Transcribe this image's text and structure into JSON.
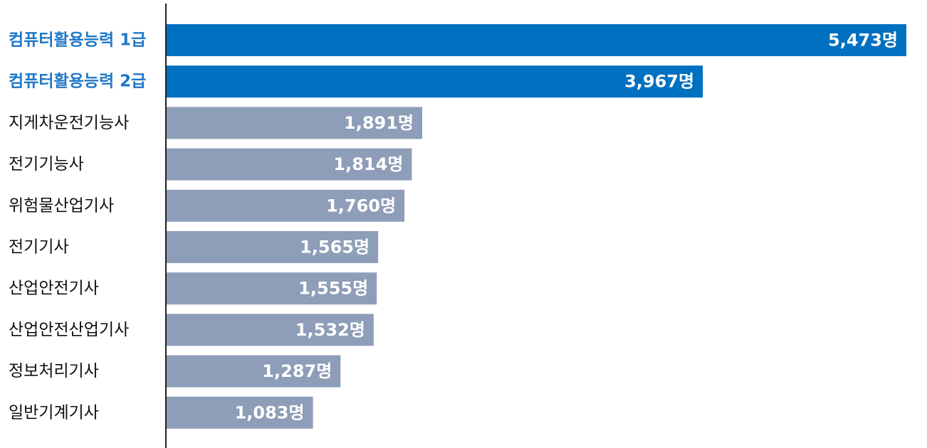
{
  "chart_data": {
    "type": "bar",
    "orientation": "horizontal",
    "categories": [
      "컴퓨터활용능력 1급",
      "컴퓨터활용능력 2급",
      "지게차운전기능사",
      "전기기능사",
      "위험물산업기사",
      "전기기사",
      "산업안전기사",
      "산업안전산업기사",
      "정보처리기사",
      "일반기계기사"
    ],
    "values": [
      5473,
      3967,
      1891,
      1814,
      1760,
      1565,
      1555,
      1532,
      1287,
      1083
    ],
    "value_labels": [
      "5,473명",
      "3,967명",
      "1,891명",
      "1,814명",
      "1,760명",
      "1,565명",
      "1,555명",
      "1,532명",
      "1,287명",
      "1,083명"
    ],
    "highlighted": [
      true,
      true,
      false,
      false,
      false,
      false,
      false,
      false,
      false,
      false
    ],
    "xlim": [
      0,
      5473
    ],
    "grid": false,
    "legend": "none",
    "colors": {
      "highlight_bar": "#0070c0",
      "normal_bar": "#8e9db8",
      "highlight_label": "#1f78c8",
      "normal_label": "#111111",
      "value_text": "#ffffff",
      "axis": "#222222"
    }
  }
}
